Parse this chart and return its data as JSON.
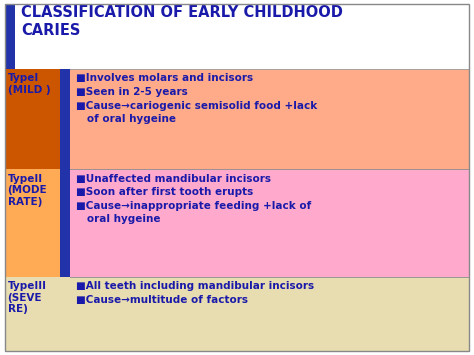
{
  "title": "CLASSIFICATION OF EARLY CHILDHOOD\nCARIES",
  "title_color": "#1a1aaa",
  "title_bg": "#ffffff",
  "header_bar_color": "#2233aa",
  "rows": [
    {
      "label": "TypeI\n(MILD )",
      "label_color": "#1a1aaa",
      "left_bg": "#cc5500",
      "left_accent": "#2233aa",
      "row_bg": "#ffaa88",
      "content": "■Involves molars and incisors\n■Seen in 2-5 years\n■Cause→cariogenic semisolid food +lack\n   of oral hygeine",
      "content_color": "#1a1aaa"
    },
    {
      "label": "TypeII\n(MODE\nRATE)",
      "label_color": "#1a1aaa",
      "left_bg": "#ffaa55",
      "left_accent": "#2233aa",
      "row_bg": "#ffaacc",
      "content": "■Unaffected mandibular incisors\n■Soon after first tooth erupts\n■Cause→inappropriate feeding +lack of\n   oral hygeine",
      "content_color": "#1a1aaa"
    },
    {
      "label": "TypeIII\n(SEVE\nRE)",
      "label_color": "#1a1aaa",
      "left_bg": "#e8ddb0",
      "left_accent": null,
      "row_bg": "#e8ddb0",
      "content": "■All teeth including mandibular incisors\n■Cause→multitude of factors",
      "content_color": "#1a1aaa"
    }
  ],
  "fig_bg": "#ffffff",
  "border_color": "#aaaaaa"
}
